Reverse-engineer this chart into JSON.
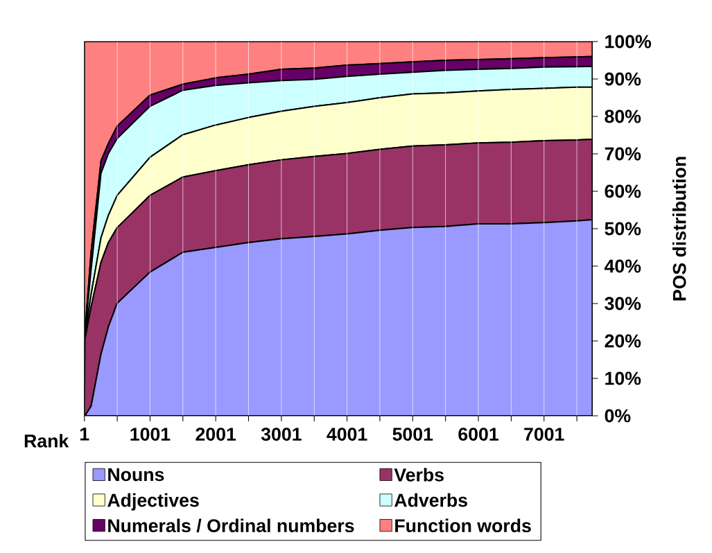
{
  "chart_data": {
    "type": "area",
    "stacked": true,
    "xlabel": "Rank",
    "ylabel": "POS distribution",
    "x": [
      1,
      10,
      103,
      254,
      367,
      501,
      1001,
      1501,
      2001,
      2501,
      3001,
      3501,
      4001,
      4501,
      5001,
      5501,
      6001,
      6501,
      7001,
      7501,
      7737
    ],
    "series": [
      {
        "name": "Nouns",
        "color": "#9999ff",
        "values": [
          0,
          0,
          2.6,
          16.5,
          23.8,
          30.1,
          38.4,
          43.7,
          45.0,
          46.3,
          47.3,
          47.9,
          48.6,
          49.6,
          50.3,
          50.6,
          51.3,
          51.3,
          51.6,
          52.1,
          52.4
        ]
      },
      {
        "name": "Verbs",
        "color": "#993366",
        "values": [
          0,
          20.5,
          26.5,
          24.5,
          22.5,
          20.2,
          20.5,
          20.1,
          20.5,
          20.8,
          21.1,
          21.4,
          21.5,
          21.6,
          21.8,
          21.8,
          21.6,
          21.8,
          21.9,
          21.6,
          21.5
        ]
      },
      {
        "name": "Adjectives",
        "color": "#ffffcc",
        "values": [
          0,
          1.0,
          3.3,
          6.6,
          7.3,
          8.6,
          10.2,
          11.3,
          12.2,
          12.6,
          13.0,
          13.4,
          13.6,
          13.8,
          13.9,
          13.9,
          13.9,
          14.1,
          14.0,
          14.1,
          13.9
        ]
      },
      {
        "name": "Adverbs",
        "color": "#ccffff",
        "values": [
          0,
          0.5,
          6.6,
          17.2,
          16.5,
          15.2,
          13.6,
          11.9,
          10.6,
          9.3,
          8.2,
          7.2,
          7.0,
          6.3,
          5.8,
          6.0,
          5.8,
          5.6,
          5.7,
          5.5,
          5.6
        ]
      },
      {
        "name": "Numerals / Ordinal numbers",
        "color": "#660066",
        "values": [
          0,
          0.5,
          4.7,
          3.3,
          2.7,
          3.3,
          3.0,
          1.6,
          2.0,
          2.3,
          3.0,
          3.0,
          3.0,
          2.8,
          2.8,
          2.7,
          2.6,
          2.6,
          2.5,
          2.6,
          2.6
        ]
      },
      {
        "name": "Function words",
        "color": "#ff8080",
        "values": [
          100,
          77.5,
          56.3,
          31.9,
          27.2,
          22.6,
          14.3,
          11.4,
          9.7,
          8.7,
          7.4,
          7.1,
          6.3,
          5.9,
          5.4,
          5.0,
          4.8,
          4.6,
          4.3,
          4.1,
          4.0
        ]
      }
    ],
    "xlim": [
      1,
      7737
    ],
    "xticks": [
      1,
      {
        "value": 501,
        "label": null
      },
      1001,
      {
        "value": 1501,
        "label": null
      },
      2001,
      {
        "value": 2501,
        "label": null
      },
      3001,
      {
        "value": 3501,
        "label": null
      },
      4001,
      {
        "value": 4501,
        "label": null
      },
      5001,
      {
        "value": 5501,
        "label": null
      },
      6001,
      {
        "value": 6501,
        "label": null
      },
      7001,
      {
        "value": 7501,
        "label": null
      }
    ],
    "ylim": [
      0,
      100
    ],
    "yticks": [
      {
        "value": 0,
        "label": "0%"
      },
      {
        "value": 10,
        "label": "10%"
      },
      {
        "value": 20,
        "label": "20%"
      },
      {
        "value": 30,
        "label": "30%"
      },
      {
        "value": 40,
        "label": "40%"
      },
      {
        "value": 50,
        "label": "50%"
      },
      {
        "value": 60,
        "label": "60%"
      },
      {
        "value": 70,
        "label": "70%"
      },
      {
        "value": 80,
        "label": "80%"
      },
      {
        "value": 90,
        "label": "90%"
      },
      {
        "value": 100,
        "label": "100%"
      }
    ],
    "grid": "x",
    "legend": "bottom"
  }
}
